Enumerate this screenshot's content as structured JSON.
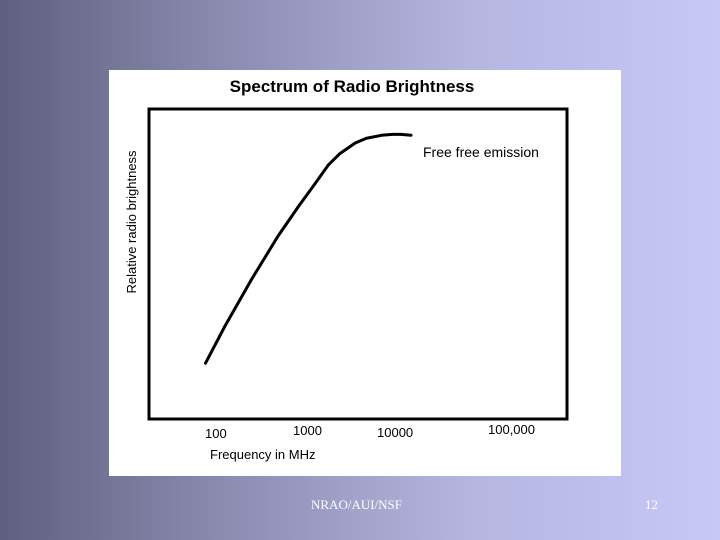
{
  "chart_data": {
    "type": "line",
    "title": "Spectrum of Radio Brightness",
    "xlabel": "Frequency in MHz",
    "ylabel": "Relative radio brightness",
    "x_scale": "log",
    "y_ticks": "none",
    "grid": false,
    "tick_labels": [
      "100",
      "1000",
      "10000",
      "100,000"
    ],
    "annotation": "Free free emission",
    "series": [
      {
        "x": [
          60,
          100,
          200,
          400,
          700,
          1000,
          1500,
          2000,
          3000,
          4000,
          6000,
          8000,
          10000,
          13000
        ],
        "y": [
          0.18,
          0.3,
          0.45,
          0.59,
          0.69,
          0.75,
          0.82,
          0.855,
          0.89,
          0.905,
          0.915,
          0.918,
          0.918,
          0.915
        ]
      }
    ],
    "line_color": "#000000"
  },
  "footer": {
    "source": "NRAO/AUI/NSF",
    "page_number": "12"
  }
}
